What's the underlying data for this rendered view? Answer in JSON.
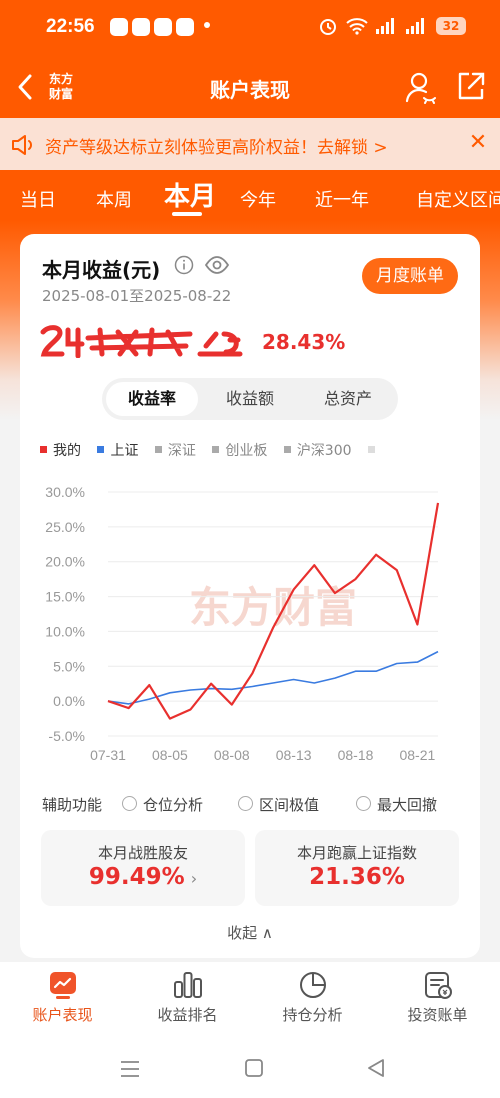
{
  "status": {
    "time": "22:56",
    "battery": "32"
  },
  "header": {
    "logo_line1": "东方",
    "logo_line2": "财富",
    "title": "账户表现"
  },
  "banner": {
    "text": "资产等级达标立刻体验更高阶权益！去解锁 >",
    "close": "✕"
  },
  "tabs": [
    {
      "label": "当日"
    },
    {
      "label": "本周"
    },
    {
      "label": "本月",
      "active": true
    },
    {
      "label": "今年"
    },
    {
      "label": "近一年"
    },
    {
      "label": "自定义区间"
    }
  ],
  "card": {
    "title": "本月收益(元)",
    "date_range": "2025-08-01至2025-08-22",
    "bill_button": "月度账单",
    "return_pct": "28.43%",
    "segments": [
      "收益率",
      "收益额",
      "总资产"
    ],
    "legend": [
      {
        "label": "我的",
        "color": "#e8302e"
      },
      {
        "label": "上证",
        "color": "#3a7be0"
      },
      {
        "label": "深证",
        "color": "#aaaaaa"
      },
      {
        "label": "创业板",
        "color": "#aaaaaa"
      },
      {
        "label": "沪深300",
        "color": "#aaaaaa"
      }
    ],
    "watermark": "东方财富",
    "aux_label": "辅助功能",
    "aux_options": [
      "仓位分析",
      "区间极值",
      "最大回撤"
    ],
    "stat1_label": "本月战胜股友",
    "stat1_value": "99.49%",
    "stat2_label": "本月跑赢上证指数",
    "stat2_value": "21.36%",
    "collapse": "收起"
  },
  "chart_data": {
    "type": "line",
    "y_ticks": [
      "30.0%",
      "25.0%",
      "20.0%",
      "15.0%",
      "10.0%",
      "5.0%",
      "0.0%",
      "-5.0%"
    ],
    "ylim": [
      -5,
      30
    ],
    "x_ticks": [
      "07-31",
      "08-05",
      "08-08",
      "08-13",
      "08-18",
      "08-21"
    ],
    "x": [
      "07-31",
      "08-01",
      "08-04",
      "08-05",
      "08-06",
      "08-07",
      "08-08",
      "08-11",
      "08-12",
      "08-13",
      "08-14",
      "08-15",
      "08-18",
      "08-19",
      "08-20",
      "08-21",
      "08-22"
    ],
    "series": [
      {
        "name": "我的",
        "color": "#e8302e",
        "values": [
          0,
          -1,
          2.3,
          -2.5,
          -1.2,
          2.5,
          -0.5,
          4.0,
          10.5,
          16.0,
          19.5,
          15.5,
          17.5,
          21.0,
          18.8,
          11.0,
          28.43
        ]
      },
      {
        "name": "上证",
        "color": "#3a7be0",
        "values": [
          0,
          -0.4,
          0.3,
          1.2,
          1.6,
          1.8,
          1.7,
          2.1,
          2.6,
          3.1,
          2.6,
          3.3,
          4.3,
          4.3,
          5.4,
          5.6,
          7.1
        ]
      }
    ]
  },
  "bottom_nav": [
    {
      "label": "账户表现",
      "active": true
    },
    {
      "label": "收益排名"
    },
    {
      "label": "持仓分析"
    },
    {
      "label": "投资账单"
    }
  ]
}
